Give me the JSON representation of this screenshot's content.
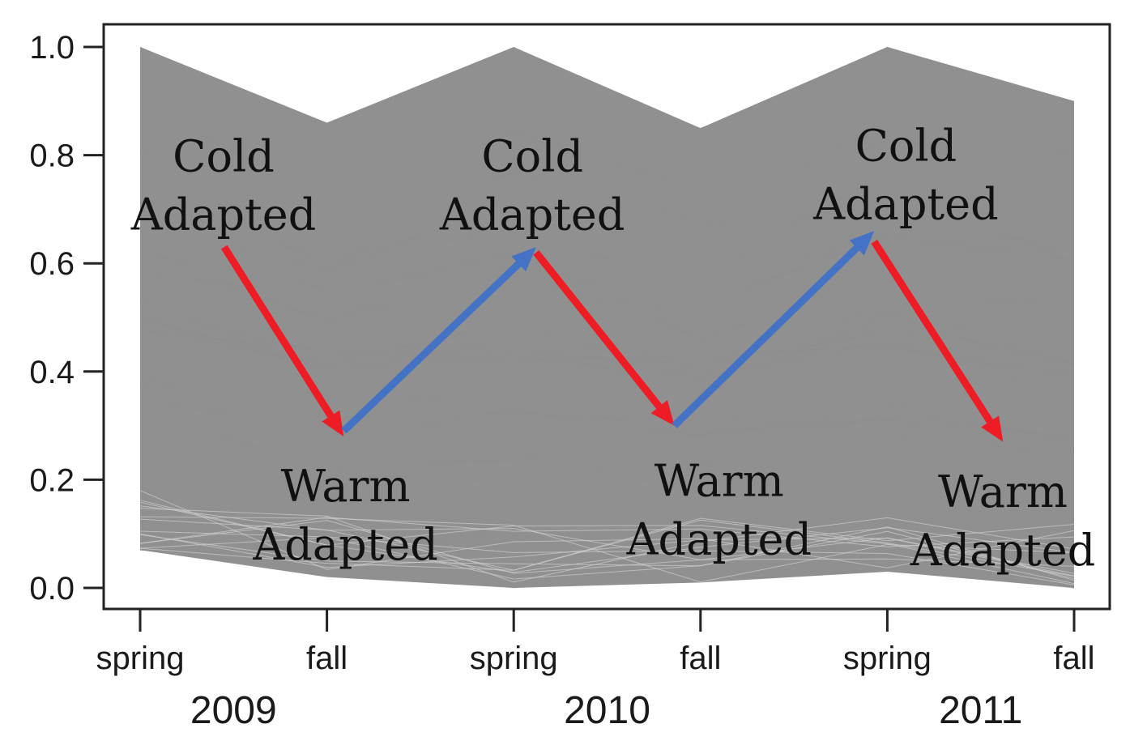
{
  "chart_data": {
    "type": "line",
    "x": [
      "spring",
      "fall",
      "spring",
      "fall",
      "spring",
      "fall"
    ],
    "years": [
      "2009",
      "2010",
      "2011"
    ],
    "ylim": [
      0.0,
      1.0
    ],
    "yticks": [
      "0.0",
      "0.2",
      "0.4",
      "0.6",
      "0.8",
      "1.0"
    ],
    "band": {
      "upper": [
        1.0,
        0.86,
        1.0,
        0.85,
        1.0,
        0.9
      ],
      "lower": [
        0.07,
        0.02,
        0.0,
        0.01,
        0.03,
        0.0
      ],
      "color": "#8a8a8a"
    },
    "annotations": [
      {
        "line1": "Cold",
        "line2": "Adapted",
        "x_index": 0,
        "y": 0.77
      },
      {
        "line1": "Warm",
        "line2": "Adapted",
        "x_index": 1,
        "y": 0.16
      },
      {
        "line1": "Cold",
        "line2": "Adapted",
        "x_index": 2,
        "y": 0.77
      },
      {
        "line1": "Warm",
        "line2": "Adapted",
        "x_index": 3,
        "y": 0.17
      },
      {
        "line1": "Cold",
        "line2": "Adapted",
        "x_index": 4,
        "y": 0.79
      },
      {
        "line1": "Warm",
        "line2": "Adapted",
        "x_index": 5,
        "y": 0.15
      }
    ],
    "arrows": [
      {
        "from": [
          0.45,
          0.63
        ],
        "to": [
          1.09,
          0.28
        ],
        "kind": "cold-to-warm"
      },
      {
        "from": [
          1.09,
          0.29
        ],
        "to": [
          2.12,
          0.63
        ],
        "kind": "warm-to-cold"
      },
      {
        "from": [
          2.12,
          0.62
        ],
        "to": [
          2.86,
          0.3
        ],
        "kind": "cold-to-warm"
      },
      {
        "from": [
          2.86,
          0.3
        ],
        "to": [
          3.93,
          0.66
        ],
        "kind": "warm-to-cold"
      },
      {
        "from": [
          3.93,
          0.64
        ],
        "to": [
          4.62,
          0.27
        ],
        "kind": "cold-to-warm"
      }
    ],
    "colors": {
      "cold_to_warm": "#ee1c25",
      "warm_to_cold": "#4472c4",
      "trajectory": "#8f8f8f"
    }
  }
}
